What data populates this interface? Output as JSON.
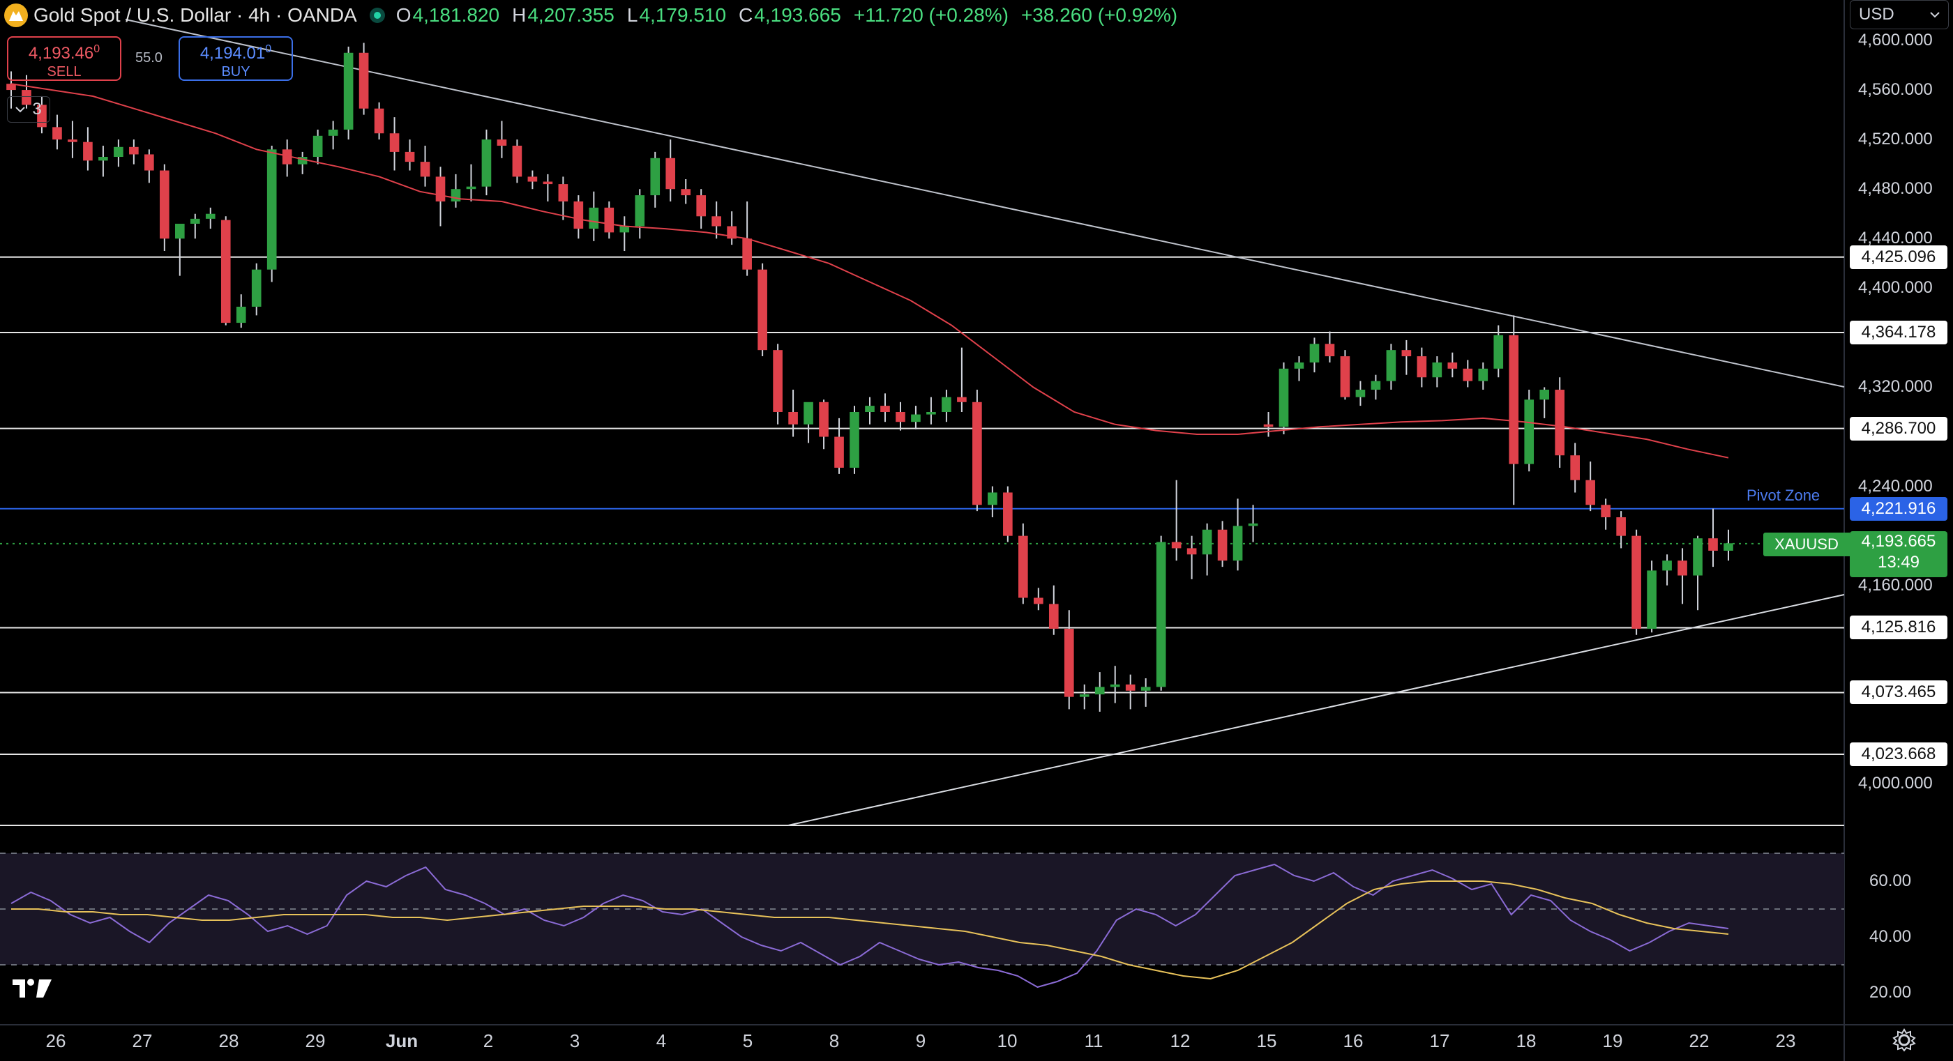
{
  "header": {
    "title": "Gold Spot / U.S. Dollar · 4h · OANDA",
    "open_key": "O",
    "open": "4,181.820",
    "high_key": "H",
    "high": "4,207.355",
    "low_key": "L",
    "low": "4,179.510",
    "close_key": "C",
    "close": "4,193.665",
    "change": "+11.720 (+0.28%)",
    "change2": "+38.260 (+0.92%)"
  },
  "trade": {
    "sell_price": "4,193.46",
    "sell_sup": "0",
    "sell_label": "SELL",
    "buy_price": "4,194.01",
    "buy_sup": "0",
    "buy_label": "BUY",
    "spread": "55.0",
    "collapse_count": "3"
  },
  "currency": "USD",
  "price_axis": [
    "4,600.000",
    "4,560.000",
    "4,520.000",
    "4,480.000",
    "4,440.000",
    "4,400.000",
    "4,320.000",
    "4,240.000",
    "4,160.000",
    "4,000.000"
  ],
  "levels": [
    "4,425.096",
    "4,364.178",
    "4,286.700",
    "4,125.816",
    "4,073.465",
    "4,023.668"
  ],
  "pivot": {
    "label": "Pivot Zone",
    "price": "4,221.916"
  },
  "current": {
    "symbol": "XAUUSD",
    "price": "4,193.665",
    "countdown": "13:49"
  },
  "rsi_axis": [
    "60.00",
    "40.00",
    "20.00"
  ],
  "date_axis": [
    "26",
    "27",
    "28",
    "29",
    "Jun",
    "2",
    "3",
    "4",
    "5",
    "8",
    "9",
    "10",
    "11",
    "12",
    "15",
    "16",
    "17",
    "18",
    "19",
    "22",
    "23"
  ],
  "colors": {
    "up": "#2ea043",
    "down": "#e0414b",
    "ma": "#e0414b",
    "rsi": "#8b6bd6",
    "rsi_ma": "#e8c25a",
    "pivot": "#2b63e6"
  },
  "icons": {
    "logo": "gold-coin-icon",
    "settings": "gear-icon",
    "collapse": "chevron-down-icon",
    "currency": "chevron-down-icon"
  },
  "chart_data": {
    "type": "candlestick",
    "timeframe": "4h",
    "symbol": "XAUUSD",
    "ylim": [
      3970,
      4620
    ],
    "candles": [
      [
        4565,
        4575,
        4545,
        4560
      ],
      [
        4560,
        4572,
        4545,
        4548
      ],
      [
        4548,
        4555,
        4525,
        4530
      ],
      [
        4530,
        4540,
        4512,
        4520
      ],
      [
        4520,
        4535,
        4505,
        4518
      ],
      [
        4518,
        4530,
        4495,
        4503
      ],
      [
        4503,
        4515,
        4490,
        4506
      ],
      [
        4506,
        4520,
        4498,
        4514
      ],
      [
        4514,
        4520,
        4500,
        4508
      ],
      [
        4508,
        4512,
        4485,
        4495
      ],
      [
        4495,
        4500,
        4430,
        4440
      ],
      [
        4440,
        4452,
        4410,
        4452
      ],
      [
        4452,
        4460,
        4440,
        4456
      ],
      [
        4456,
        4465,
        4448,
        4460
      ],
      [
        4455,
        4458,
        4370,
        4372
      ],
      [
        4372,
        4395,
        4368,
        4385
      ],
      [
        4385,
        4420,
        4378,
        4415
      ],
      [
        4415,
        4515,
        4405,
        4512
      ],
      [
        4512,
        4520,
        4490,
        4500
      ],
      [
        4500,
        4510,
        4492,
        4506
      ],
      [
        4506,
        4528,
        4500,
        4523
      ],
      [
        4523,
        4535,
        4512,
        4528
      ],
      [
        4528,
        4595,
        4520,
        4590
      ],
      [
        4590,
        4598,
        4540,
        4545
      ],
      [
        4545,
        4550,
        4520,
        4525
      ],
      [
        4525,
        4538,
        4495,
        4510
      ],
      [
        4510,
        4520,
        4495,
        4502
      ],
      [
        4502,
        4515,
        4482,
        4490
      ],
      [
        4490,
        4498,
        4450,
        4470
      ],
      [
        4470,
        4492,
        4465,
        4480
      ],
      [
        4480,
        4500,
        4470,
        4482
      ],
      [
        4482,
        4528,
        4475,
        4520
      ],
      [
        4520,
        4535,
        4505,
        4515
      ],
      [
        4515,
        4520,
        4485,
        4490
      ],
      [
        4490,
        4495,
        4480,
        4486
      ],
      [
        4486,
        4492,
        4470,
        4484
      ],
      [
        4484,
        4490,
        4455,
        4470
      ],
      [
        4470,
        4475,
        4440,
        4448
      ],
      [
        4448,
        4478,
        4438,
        4465
      ],
      [
        4465,
        4470,
        4440,
        4445
      ],
      [
        4445,
        4458,
        4430,
        4450
      ],
      [
        4450,
        4480,
        4440,
        4475
      ],
      [
        4475,
        4510,
        4465,
        4505
      ],
      [
        4505,
        4520,
        4470,
        4480
      ],
      [
        4480,
        4488,
        4468,
        4475
      ],
      [
        4475,
        4480,
        4448,
        4458
      ],
      [
        4458,
        4470,
        4440,
        4450
      ],
      [
        4450,
        4462,
        4435,
        4440
      ],
      [
        4440,
        4470,
        4410,
        4415
      ],
      [
        4415,
        4420,
        4345,
        4350
      ],
      [
        4350,
        4355,
        4290,
        4300
      ],
      [
        4300,
        4318,
        4280,
        4290
      ],
      [
        4290,
        4305,
        4275,
        4308
      ],
      [
        4308,
        4310,
        4270,
        4280
      ],
      [
        4280,
        4295,
        4250,
        4255
      ],
      [
        4255,
        4305,
        4250,
        4300
      ],
      [
        4300,
        4312,
        4290,
        4305
      ],
      [
        4305,
        4315,
        4292,
        4300
      ],
      [
        4300,
        4308,
        4285,
        4292
      ],
      [
        4292,
        4305,
        4286,
        4298
      ],
      [
        4298,
        4312,
        4290,
        4300
      ],
      [
        4300,
        4318,
        4292,
        4312
      ],
      [
        4312,
        4352,
        4300,
        4308
      ],
      [
        4308,
        4318,
        4220,
        4225
      ],
      [
        4225,
        4240,
        4215,
        4235
      ],
      [
        4235,
        4240,
        4195,
        4200
      ],
      [
        4200,
        4210,
        4145,
        4150
      ],
      [
        4150,
        4158,
        4140,
        4145
      ],
      [
        4145,
        4160,
        4120,
        4125
      ],
      [
        4125,
        4140,
        4060,
        4070
      ],
      [
        4070,
        4080,
        4060,
        4072
      ],
      [
        4072,
        4090,
        4058,
        4078
      ],
      [
        4078,
        4095,
        4065,
        4080
      ],
      [
        4080,
        4088,
        4060,
        4075
      ],
      [
        4075,
        4085,
        4062,
        4078
      ],
      [
        4078,
        4200,
        4075,
        4195
      ],
      [
        4195,
        4245,
        4180,
        4190
      ],
      [
        4190,
        4200,
        4165,
        4185
      ],
      [
        4185,
        4210,
        4168,
        4205
      ],
      [
        4205,
        4212,
        4175,
        4180
      ],
      [
        4180,
        4230,
        4172,
        4208
      ],
      [
        4208,
        4225,
        4195,
        4210
      ],
      [
        4290,
        4300,
        4280,
        4288
      ],
      [
        4288,
        4340,
        4282,
        4335
      ],
      [
        4335,
        4345,
        4325,
        4340
      ],
      [
        4340,
        4360,
        4332,
        4355
      ],
      [
        4355,
        4365,
        4340,
        4345
      ],
      [
        4345,
        4350,
        4310,
        4312
      ],
      [
        4312,
        4325,
        4305,
        4318
      ],
      [
        4318,
        4330,
        4310,
        4325
      ],
      [
        4325,
        4355,
        4318,
        4350
      ],
      [
        4350,
        4358,
        4330,
        4345
      ],
      [
        4345,
        4352,
        4320,
        4328
      ],
      [
        4328,
        4345,
        4320,
        4340
      ],
      [
        4340,
        4348,
        4328,
        4335
      ],
      [
        4335,
        4342,
        4320,
        4325
      ],
      [
        4325,
        4340,
        4318,
        4335
      ],
      [
        4335,
        4370,
        4328,
        4362
      ],
      [
        4362,
        4378,
        4225,
        4258
      ],
      [
        4258,
        4318,
        4252,
        4310
      ],
      [
        4310,
        4320,
        4295,
        4318
      ],
      [
        4318,
        4328,
        4255,
        4265
      ],
      [
        4265,
        4275,
        4235,
        4245
      ],
      [
        4245,
        4260,
        4220,
        4225
      ],
      [
        4225,
        4230,
        4205,
        4215
      ],
      [
        4215,
        4220,
        4190,
        4200
      ],
      [
        4200,
        4205,
        4120,
        4125
      ],
      [
        4125,
        4180,
        4122,
        4172
      ],
      [
        4172,
        4185,
        4160,
        4180
      ],
      [
        4180,
        4190,
        4145,
        4168
      ],
      [
        4168,
        4200,
        4140,
        4198
      ],
      [
        4198,
        4222,
        4175,
        4188
      ],
      [
        4188,
        4205,
        4180,
        4194
      ]
    ],
    "moving_average": [
      4565,
      4560,
      4555,
      4545,
      4535,
      4525,
      4512,
      4505,
      4498,
      4490,
      4478,
      4472,
      4470,
      4462,
      4455,
      4450,
      4448,
      4445,
      4440,
      4430,
      4420,
      4405,
      4390,
      4370,
      4345,
      4320,
      4300,
      4290,
      4285,
      4282,
      4282,
      4285,
      4288,
      4290,
      4292,
      4293,
      4295,
      4292,
      4288,
      4283,
      4278,
      4270,
      4263
    ],
    "rsi": [
      52,
      56,
      53,
      48,
      45,
      47,
      42,
      38,
      45,
      50,
      55,
      53,
      48,
      42,
      44,
      41,
      44,
      55,
      60,
      58,
      62,
      65,
      57,
      55,
      52,
      48,
      50,
      46,
      44,
      47,
      52,
      55,
      53,
      49,
      48,
      50,
      45,
      40,
      37,
      35,
      38,
      34,
      30,
      33,
      38,
      35,
      32,
      30,
      31,
      29,
      28,
      26,
      22,
      24,
      27,
      35,
      46,
      50,
      48,
      44,
      48,
      55,
      62,
      64,
      66,
      62,
      60,
      63,
      58,
      55,
      60,
      62,
      64,
      61,
      57,
      59,
      48,
      55,
      53,
      46,
      42,
      39,
      35,
      38,
      42,
      45,
      44,
      43
    ],
    "rsi_ma": [
      50,
      50,
      49,
      49,
      48,
      48,
      47,
      46,
      46,
      47,
      48,
      48,
      48,
      48,
      47,
      47,
      46,
      47,
      48,
      49,
      50,
      51,
      51,
      51,
      50,
      50,
      49,
      48,
      47,
      47,
      47,
      46,
      45,
      44,
      43,
      42,
      40,
      38,
      37,
      35,
      33,
      30,
      28,
      26,
      25,
      28,
      33,
      38,
      45,
      52,
      57,
      59,
      60,
      60,
      60,
      59,
      57,
      54,
      52,
      48,
      45,
      43,
      42,
      41
    ],
    "rsi_levels": [
      70,
      50,
      30
    ]
  }
}
